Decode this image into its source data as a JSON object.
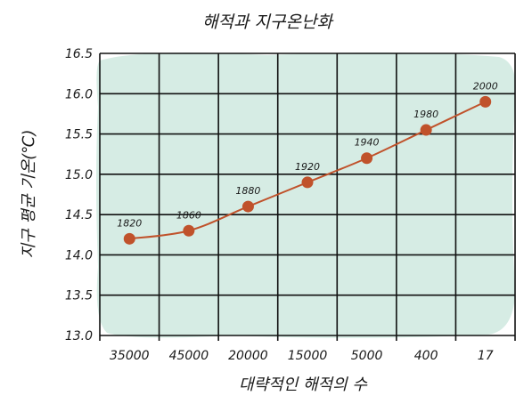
{
  "chart_data": {
    "type": "line",
    "title": "해적과 지구온난화",
    "xlabel": "대략적인 해적의 수",
    "ylabel": "지구 평균 기온(℃)",
    "categories": [
      "35000",
      "45000",
      "20000",
      "15000",
      "5000",
      "400",
      "17"
    ],
    "series": [
      {
        "values": [
          14.2,
          14.3,
          14.6,
          14.9,
          15.2,
          15.55,
          15.9
        ],
        "point_labels": [
          "1820",
          "1860",
          "1880",
          "1920",
          "1940",
          "1980",
          "2000"
        ]
      }
    ],
    "ylim": [
      13.0,
      16.5
    ],
    "yticks": [
      "13.0",
      "13.5",
      "14.0",
      "14.5",
      "15.0",
      "15.5",
      "16.0",
      "16.5"
    ],
    "grid": true,
    "colors": {
      "line": "#c0522b",
      "marker": "#c0522b",
      "background_blob": "#d6ece4",
      "grid": "#111111"
    }
  }
}
